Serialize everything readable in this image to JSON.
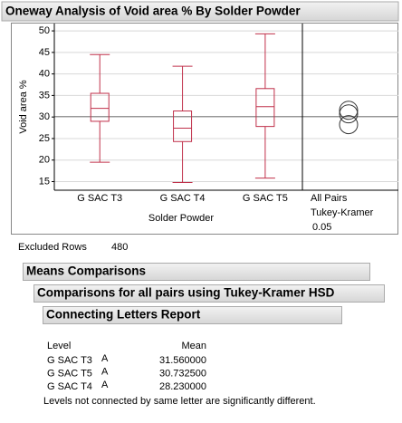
{
  "chart_data": {
    "type": "box",
    "title": "Oneway Analysis of Void area % By Solder Powder",
    "y_label": "Void area %",
    "x_label": "Solder Powder",
    "categories": [
      "G SAC T3",
      "G SAC T4",
      "G SAC T5"
    ],
    "boxes": [
      {
        "min": 19.5,
        "q1": 29.0,
        "median": 32.0,
        "q3": 35.5,
        "max": 44.5
      },
      {
        "min": 14.8,
        "q1": 24.3,
        "median": 27.4,
        "q3": 31.4,
        "max": 41.8
      },
      {
        "min": 15.8,
        "q1": 27.8,
        "median": 32.4,
        "q3": 36.6,
        "max": 49.3
      }
    ],
    "color": "#c0304a",
    "grand_mean": 30.1,
    "ylim": [
      13,
      51.7
    ],
    "yticks": [
      15,
      20,
      25,
      30,
      35,
      40,
      45,
      50
    ],
    "grid": true,
    "comparison": {
      "labels": [
        "All Pairs",
        "Tukey-Kramer",
        "0.05"
      ],
      "centers": [
        31.56,
        30.7325,
        28.23
      ],
      "radii": [
        2.1,
        2.1,
        2.1
      ]
    }
  },
  "excluded_rows": {
    "label": "Excluded Rows",
    "value": 480
  },
  "report": {
    "means_comparisons": "Means Comparisons",
    "tukey_title": "Comparisons for all pairs using Tukey-Kramer HSD",
    "connecting_letters_title": "Connecting Letters Report",
    "table": {
      "headers": [
        "Level",
        "Mean"
      ],
      "rows": [
        [
          "G SAC T3",
          "A",
          "31.560000"
        ],
        [
          "G SAC T5",
          "A",
          "30.732500"
        ],
        [
          "G SAC T4",
          "A",
          "28.230000"
        ]
      ]
    },
    "note": "Levels not connected by same letter are significantly different."
  }
}
